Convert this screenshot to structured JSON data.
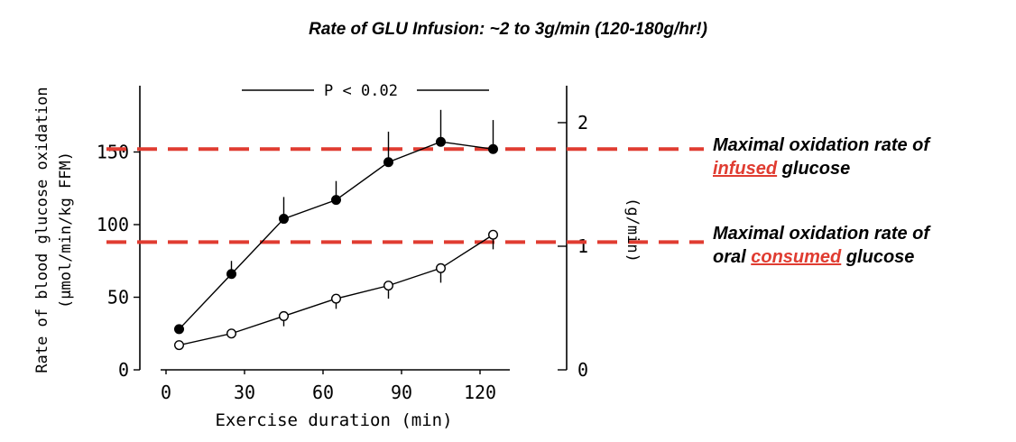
{
  "title": "Rate of GLU Infusion: ~2 to 3g/min (120-180g/hr!)",
  "chart_data": {
    "type": "line",
    "xlabel": "Exercise duration (min)",
    "ylabel_line1": "Rate of blood glucose oxidation",
    "ylabel_line2": "(µmol/min/kg FFM)",
    "y2label": "(g/min)",
    "x_ticks": [
      0,
      30,
      60,
      90,
      120
    ],
    "y_ticks": [
      0,
      50,
      100,
      150
    ],
    "y2_ticks": [
      0,
      1,
      2
    ],
    "xlim": [
      -10,
      140
    ],
    "ylim": [
      0,
      200
    ],
    "y2lim": [
      0,
      2.35
    ],
    "significance": "P < 0.02",
    "series": [
      {
        "marker": "filled",
        "x": [
          5,
          25,
          45,
          65,
          85,
          105,
          125
        ],
        "y": [
          28,
          66,
          104,
          117,
          143,
          157,
          152
        ],
        "err": [
          0,
          9,
          15,
          13,
          21,
          22,
          20
        ]
      },
      {
        "marker": "open",
        "x": [
          5,
          25,
          45,
          65,
          85,
          105,
          125
        ],
        "y": [
          17,
          25,
          37,
          49,
          58,
          70,
          93
        ],
        "err": [
          0,
          0,
          7,
          7,
          9,
          10,
          10
        ]
      }
    ],
    "reference_lines": [
      {
        "y": 152,
        "color": "#e03c31",
        "style": "dashed"
      },
      {
        "y": 88,
        "color": "#e03c31",
        "style": "dashed"
      }
    ]
  },
  "annotations": {
    "max_infused": {
      "line1": "Maximal oxidation rate of",
      "highlight": "infused",
      "rest": " glucose"
    },
    "max_oral": {
      "line1": "Maximal oxidation rate of",
      "prefix": "oral ",
      "highlight": "consumed",
      "rest": " glucose"
    }
  },
  "colors": {
    "highlight": "#e03c31",
    "ink": "#000000"
  }
}
